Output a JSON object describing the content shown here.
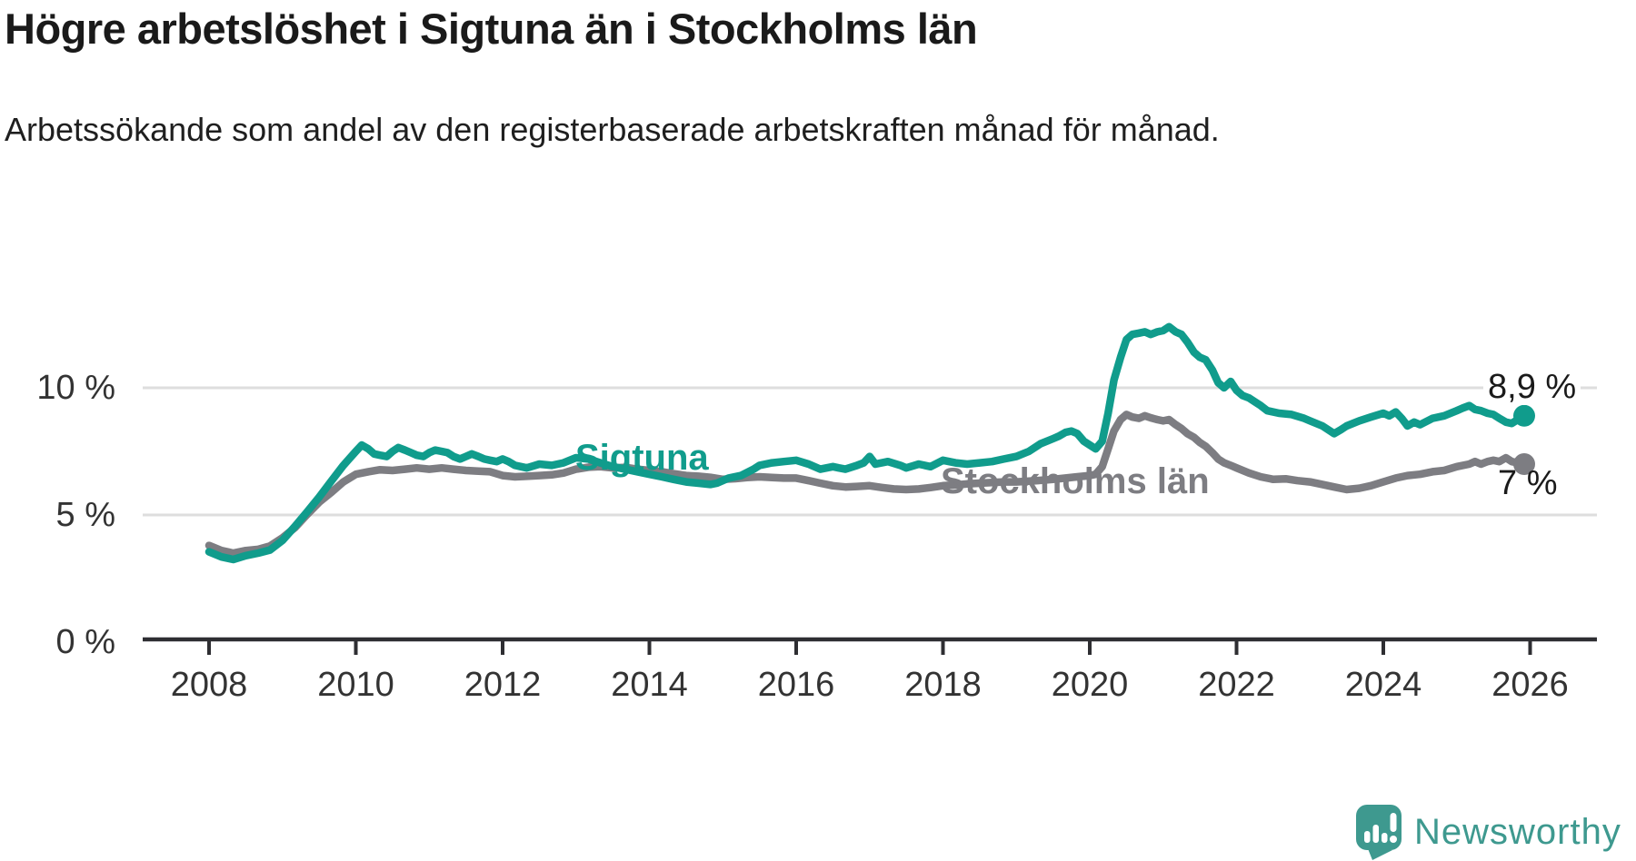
{
  "chart_data": {
    "type": "line",
    "title": "Högre arbetslöshet i Sigtuna än i Stockholms län",
    "subtitle": "Arbetssökande som andel av den registerbaserade arbetskraften månad för månad.",
    "x_unit": "year",
    "y_unit": "percent of labour force",
    "xlim": [
      2007.6,
      2026.9
    ],
    "ylim": [
      0,
      12.6
    ],
    "grid": "horizontal",
    "legend_position": "inline-labels",
    "gridline_color": "#dedede",
    "axis_color": "#2e2e32",
    "tick_label_color": "#333333",
    "xticks": [
      {
        "value": 2008,
        "label": "2008"
      },
      {
        "value": 2010,
        "label": "2010"
      },
      {
        "value": 2012,
        "label": "2012"
      },
      {
        "value": 2014,
        "label": "2014"
      },
      {
        "value": 2016,
        "label": "2016"
      },
      {
        "value": 2018,
        "label": "2018"
      },
      {
        "value": 2020,
        "label": "2020"
      },
      {
        "value": 2022,
        "label": "2022"
      },
      {
        "value": 2024,
        "label": "2024"
      },
      {
        "value": 2026,
        "label": "2026"
      }
    ],
    "yticks": [
      {
        "value": 0,
        "label": "0 %"
      },
      {
        "value": 5,
        "label": "5 %"
      },
      {
        "value": 10,
        "label": "10 %"
      }
    ],
    "series": [
      {
        "id": "stockholm",
        "name": "Stockholms län",
        "color": "#7d7d82",
        "end_label": "7 %",
        "end_value": 7.0,
        "points": [
          [
            2008.0,
            3.8
          ],
          [
            2008.17,
            3.6
          ],
          [
            2008.33,
            3.5
          ],
          [
            2008.5,
            3.6
          ],
          [
            2008.67,
            3.65
          ],
          [
            2008.83,
            3.78
          ],
          [
            2009.0,
            4.1
          ],
          [
            2009.17,
            4.5
          ],
          [
            2009.33,
            5.0
          ],
          [
            2009.5,
            5.5
          ],
          [
            2009.67,
            5.9
          ],
          [
            2009.83,
            6.3
          ],
          [
            2010.0,
            6.6
          ],
          [
            2010.17,
            6.7
          ],
          [
            2010.33,
            6.78
          ],
          [
            2010.5,
            6.75
          ],
          [
            2010.67,
            6.8
          ],
          [
            2010.83,
            6.85
          ],
          [
            2011.0,
            6.8
          ],
          [
            2011.17,
            6.85
          ],
          [
            2011.33,
            6.8
          ],
          [
            2011.5,
            6.75
          ],
          [
            2011.67,
            6.72
          ],
          [
            2011.83,
            6.7
          ],
          [
            2012.0,
            6.55
          ],
          [
            2012.17,
            6.5
          ],
          [
            2012.33,
            6.52
          ],
          [
            2012.5,
            6.55
          ],
          [
            2012.67,
            6.58
          ],
          [
            2012.83,
            6.65
          ],
          [
            2013.0,
            6.8
          ],
          [
            2013.17,
            6.88
          ],
          [
            2013.33,
            6.9
          ],
          [
            2013.5,
            6.85
          ],
          [
            2013.67,
            6.87
          ],
          [
            2013.83,
            6.8
          ],
          [
            2014.0,
            6.75
          ],
          [
            2014.17,
            6.7
          ],
          [
            2014.33,
            6.62
          ],
          [
            2014.5,
            6.55
          ],
          [
            2014.67,
            6.52
          ],
          [
            2014.83,
            6.48
          ],
          [
            2015.0,
            6.4
          ],
          [
            2015.17,
            6.43
          ],
          [
            2015.33,
            6.47
          ],
          [
            2015.5,
            6.5
          ],
          [
            2015.67,
            6.47
          ],
          [
            2015.83,
            6.45
          ],
          [
            2016.0,
            6.45
          ],
          [
            2016.17,
            6.35
          ],
          [
            2016.33,
            6.25
          ],
          [
            2016.5,
            6.15
          ],
          [
            2016.67,
            6.1
          ],
          [
            2016.83,
            6.12
          ],
          [
            2017.0,
            6.15
          ],
          [
            2017.17,
            6.08
          ],
          [
            2017.33,
            6.02
          ],
          [
            2017.5,
            6.0
          ],
          [
            2017.67,
            6.02
          ],
          [
            2017.83,
            6.08
          ],
          [
            2018.0,
            6.15
          ],
          [
            2018.17,
            6.18
          ],
          [
            2018.33,
            6.22
          ],
          [
            2018.5,
            6.25
          ],
          [
            2018.67,
            6.28
          ],
          [
            2018.83,
            6.3
          ],
          [
            2019.0,
            6.3
          ],
          [
            2019.17,
            6.33
          ],
          [
            2019.33,
            6.36
          ],
          [
            2019.5,
            6.4
          ],
          [
            2019.67,
            6.45
          ],
          [
            2019.83,
            6.5
          ],
          [
            2020.0,
            6.55
          ],
          [
            2020.08,
            6.6
          ],
          [
            2020.17,
            6.9
          ],
          [
            2020.25,
            7.6
          ],
          [
            2020.33,
            8.3
          ],
          [
            2020.42,
            8.75
          ],
          [
            2020.5,
            8.95
          ],
          [
            2020.58,
            8.85
          ],
          [
            2020.67,
            8.8
          ],
          [
            2020.75,
            8.9
          ],
          [
            2020.83,
            8.82
          ],
          [
            2020.92,
            8.75
          ],
          [
            2021.0,
            8.7
          ],
          [
            2021.08,
            8.75
          ],
          [
            2021.17,
            8.55
          ],
          [
            2021.25,
            8.4
          ],
          [
            2021.33,
            8.2
          ],
          [
            2021.42,
            8.05
          ],
          [
            2021.5,
            7.85
          ],
          [
            2021.58,
            7.7
          ],
          [
            2021.67,
            7.45
          ],
          [
            2021.75,
            7.2
          ],
          [
            2021.83,
            7.05
          ],
          [
            2021.92,
            6.95
          ],
          [
            2022.0,
            6.85
          ],
          [
            2022.17,
            6.65
          ],
          [
            2022.33,
            6.5
          ],
          [
            2022.5,
            6.4
          ],
          [
            2022.67,
            6.42
          ],
          [
            2022.83,
            6.35
          ],
          [
            2023.0,
            6.3
          ],
          [
            2023.17,
            6.2
          ],
          [
            2023.33,
            6.1
          ],
          [
            2023.5,
            6.0
          ],
          [
            2023.67,
            6.05
          ],
          [
            2023.83,
            6.15
          ],
          [
            2024.0,
            6.3
          ],
          [
            2024.17,
            6.45
          ],
          [
            2024.33,
            6.55
          ],
          [
            2024.5,
            6.6
          ],
          [
            2024.67,
            6.7
          ],
          [
            2024.83,
            6.75
          ],
          [
            2025.0,
            6.9
          ],
          [
            2025.17,
            7.0
          ],
          [
            2025.25,
            7.1
          ],
          [
            2025.33,
            7.0
          ],
          [
            2025.42,
            7.1
          ],
          [
            2025.5,
            7.15
          ],
          [
            2025.58,
            7.1
          ],
          [
            2025.67,
            7.25
          ],
          [
            2025.75,
            7.1
          ],
          [
            2025.83,
            7.05
          ],
          [
            2025.92,
            7.0
          ]
        ]
      },
      {
        "id": "sigtuna",
        "name": "Sigtuna",
        "color": "#109c8c",
        "end_label": "8,9 %",
        "end_value": 8.9,
        "points": [
          [
            2008.0,
            3.55
          ],
          [
            2008.17,
            3.35
          ],
          [
            2008.33,
            3.25
          ],
          [
            2008.5,
            3.4
          ],
          [
            2008.67,
            3.5
          ],
          [
            2008.83,
            3.62
          ],
          [
            2009.0,
            4.0
          ],
          [
            2009.17,
            4.55
          ],
          [
            2009.33,
            5.1
          ],
          [
            2009.5,
            5.7
          ],
          [
            2009.67,
            6.35
          ],
          [
            2009.83,
            6.95
          ],
          [
            2010.0,
            7.5
          ],
          [
            2010.08,
            7.75
          ],
          [
            2010.17,
            7.6
          ],
          [
            2010.25,
            7.4
          ],
          [
            2010.33,
            7.35
          ],
          [
            2010.42,
            7.3
          ],
          [
            2010.5,
            7.5
          ],
          [
            2010.58,
            7.65
          ],
          [
            2010.67,
            7.55
          ],
          [
            2010.75,
            7.45
          ],
          [
            2010.83,
            7.35
          ],
          [
            2010.92,
            7.3
          ],
          [
            2011.0,
            7.45
          ],
          [
            2011.08,
            7.55
          ],
          [
            2011.17,
            7.5
          ],
          [
            2011.25,
            7.45
          ],
          [
            2011.33,
            7.3
          ],
          [
            2011.42,
            7.2
          ],
          [
            2011.5,
            7.3
          ],
          [
            2011.58,
            7.4
          ],
          [
            2011.67,
            7.3
          ],
          [
            2011.75,
            7.2
          ],
          [
            2011.83,
            7.15
          ],
          [
            2011.92,
            7.1
          ],
          [
            2012.0,
            7.2
          ],
          [
            2012.08,
            7.1
          ],
          [
            2012.17,
            6.95
          ],
          [
            2012.25,
            6.9
          ],
          [
            2012.33,
            6.85
          ],
          [
            2012.5,
            7.0
          ],
          [
            2012.67,
            6.95
          ],
          [
            2012.83,
            7.05
          ],
          [
            2013.0,
            7.25
          ],
          [
            2013.17,
            7.2
          ],
          [
            2013.33,
            7.05
          ],
          [
            2013.5,
            6.9
          ],
          [
            2013.67,
            6.8
          ],
          [
            2013.83,
            6.7
          ],
          [
            2014.0,
            6.6
          ],
          [
            2014.17,
            6.5
          ],
          [
            2014.33,
            6.4
          ],
          [
            2014.5,
            6.3
          ],
          [
            2014.67,
            6.25
          ],
          [
            2014.83,
            6.2
          ],
          [
            2014.92,
            6.25
          ],
          [
            2015.08,
            6.45
          ],
          [
            2015.25,
            6.55
          ],
          [
            2015.42,
            6.8
          ],
          [
            2015.5,
            6.95
          ],
          [
            2015.67,
            7.05
          ],
          [
            2015.83,
            7.1
          ],
          [
            2016.0,
            7.15
          ],
          [
            2016.17,
            7.0
          ],
          [
            2016.33,
            6.8
          ],
          [
            2016.5,
            6.9
          ],
          [
            2016.58,
            6.85
          ],
          [
            2016.67,
            6.8
          ],
          [
            2016.83,
            6.95
          ],
          [
            2016.92,
            7.05
          ],
          [
            2017.0,
            7.3
          ],
          [
            2017.08,
            7.0
          ],
          [
            2017.25,
            7.1
          ],
          [
            2017.42,
            6.95
          ],
          [
            2017.5,
            6.85
          ],
          [
            2017.67,
            7.0
          ],
          [
            2017.83,
            6.9
          ],
          [
            2018.0,
            7.15
          ],
          [
            2018.17,
            7.05
          ],
          [
            2018.33,
            7.0
          ],
          [
            2018.5,
            7.05
          ],
          [
            2018.67,
            7.1
          ],
          [
            2018.83,
            7.2
          ],
          [
            2019.0,
            7.3
          ],
          [
            2019.17,
            7.5
          ],
          [
            2019.33,
            7.8
          ],
          [
            2019.5,
            8.0
          ],
          [
            2019.58,
            8.1
          ],
          [
            2019.67,
            8.25
          ],
          [
            2019.75,
            8.3
          ],
          [
            2019.83,
            8.2
          ],
          [
            2019.92,
            7.9
          ],
          [
            2020.0,
            7.75
          ],
          [
            2020.08,
            7.6
          ],
          [
            2020.17,
            7.9
          ],
          [
            2020.25,
            9.0
          ],
          [
            2020.33,
            10.3
          ],
          [
            2020.42,
            11.2
          ],
          [
            2020.5,
            11.9
          ],
          [
            2020.58,
            12.1
          ],
          [
            2020.67,
            12.15
          ],
          [
            2020.75,
            12.2
          ],
          [
            2020.83,
            12.1
          ],
          [
            2020.92,
            12.2
          ],
          [
            2021.0,
            12.25
          ],
          [
            2021.08,
            12.4
          ],
          [
            2021.17,
            12.2
          ],
          [
            2021.25,
            12.1
          ],
          [
            2021.33,
            11.8
          ],
          [
            2021.42,
            11.4
          ],
          [
            2021.5,
            11.2
          ],
          [
            2021.58,
            11.1
          ],
          [
            2021.67,
            10.7
          ],
          [
            2021.75,
            10.2
          ],
          [
            2021.83,
            10.0
          ],
          [
            2021.92,
            10.25
          ],
          [
            2022.0,
            9.9
          ],
          [
            2022.08,
            9.7
          ],
          [
            2022.17,
            9.6
          ],
          [
            2022.25,
            9.45
          ],
          [
            2022.33,
            9.3
          ],
          [
            2022.42,
            9.1
          ],
          [
            2022.58,
            9.0
          ],
          [
            2022.75,
            8.95
          ],
          [
            2022.92,
            8.8
          ],
          [
            2023.0,
            8.7
          ],
          [
            2023.17,
            8.5
          ],
          [
            2023.33,
            8.2
          ],
          [
            2023.42,
            8.35
          ],
          [
            2023.5,
            8.5
          ],
          [
            2023.67,
            8.7
          ],
          [
            2023.83,
            8.85
          ],
          [
            2024.0,
            9.0
          ],
          [
            2024.08,
            8.9
          ],
          [
            2024.17,
            9.05
          ],
          [
            2024.25,
            8.8
          ],
          [
            2024.33,
            8.5
          ],
          [
            2024.42,
            8.65
          ],
          [
            2024.5,
            8.55
          ],
          [
            2024.67,
            8.8
          ],
          [
            2024.83,
            8.9
          ],
          [
            2025.0,
            9.1
          ],
          [
            2025.08,
            9.2
          ],
          [
            2025.17,
            9.3
          ],
          [
            2025.25,
            9.15
          ],
          [
            2025.33,
            9.1
          ],
          [
            2025.42,
            9.0
          ],
          [
            2025.5,
            8.95
          ],
          [
            2025.58,
            8.8
          ],
          [
            2025.67,
            8.65
          ],
          [
            2025.75,
            8.6
          ],
          [
            2025.83,
            8.75
          ],
          [
            2025.92,
            8.9
          ]
        ]
      }
    ]
  },
  "footer": {
    "brand_name": "Newsworthy",
    "brand_color": "#3e998f"
  }
}
